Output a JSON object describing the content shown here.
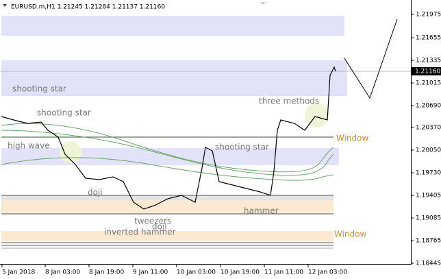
{
  "header": "EURUSD.m,H1  1.21245 1.21284 1.21137 1.21160",
  "current_price": "1.21160",
  "price_scale": [
    "1.21975",
    "1.21655",
    "1.21335",
    "1.21015",
    "1.20690",
    "1.20370",
    "1.20050",
    "1.19730",
    "1.19405",
    "1.19085",
    "1.18765",
    "1.18445"
  ],
  "time_scale": [
    "5 Jan 2018",
    "8 Jan 03:00",
    "8 Jan 19:00",
    "9 Jan 11:00",
    "10 Jan 03:00",
    "10 Jan 19:00",
    "11 Jan 11:00",
    "12 Jan 03:00"
  ],
  "annotations": [
    "shooting star",
    "shooting star",
    "high wave",
    "doji",
    "tweezers",
    "doji",
    "inverted hammer",
    "shooting star",
    "hammer",
    "three methods",
    "Window",
    "Window"
  ]
}
